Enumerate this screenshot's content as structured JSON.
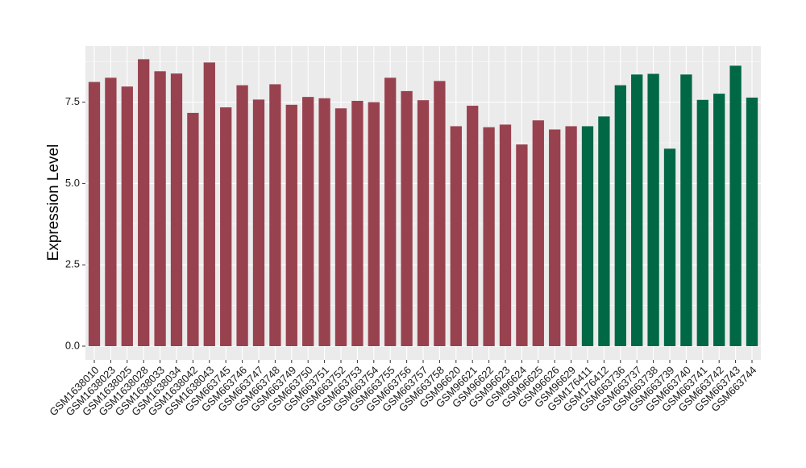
{
  "chart_data": {
    "type": "bar",
    "title": "",
    "xlabel": "",
    "ylabel": "Expression Level",
    "ylim": [
      0,
      8.9
    ],
    "yticks": [
      0.0,
      2.5,
      5.0,
      7.5
    ],
    "ytick_labels": [
      "0.0",
      "2.5",
      "5.0",
      "7.5"
    ],
    "grid": true,
    "legend": "none",
    "colors": {
      "group_a": "#99424f",
      "group_b": "#006845",
      "panel": "#ebebeb",
      "grid": "#ffffff"
    },
    "categories": [
      "GSM1638010",
      "GSM1638023",
      "GSM1638025",
      "GSM1638028",
      "GSM1638033",
      "GSM1638034",
      "GSM1638042",
      "GSM1638043",
      "GSM663745",
      "GSM663746",
      "GSM663747",
      "GSM663748",
      "GSM663749",
      "GSM663750",
      "GSM663751",
      "GSM663752",
      "GSM663753",
      "GSM663754",
      "GSM663755",
      "GSM663756",
      "GSM663757",
      "GSM663758",
      "GSM96620",
      "GSM96621",
      "GSM96622",
      "GSM96623",
      "GSM96624",
      "GSM96625",
      "GSM96626",
      "GSM96629",
      "GSM176411",
      "GSM176412",
      "GSM663736",
      "GSM663737",
      "GSM663738",
      "GSM663739",
      "GSM663740",
      "GSM663741",
      "GSM663742",
      "GSM663743",
      "GSM663744"
    ],
    "values": [
      8.12,
      8.25,
      7.98,
      8.82,
      8.45,
      8.38,
      7.17,
      8.72,
      7.34,
      8.02,
      7.58,
      8.05,
      7.42,
      7.66,
      7.62,
      7.31,
      7.54,
      7.5,
      8.25,
      7.84,
      7.56,
      8.15,
      6.76,
      7.39,
      6.73,
      6.81,
      6.2,
      6.94,
      6.66,
      6.76,
      6.76,
      7.06,
      8.02,
      8.35,
      8.37,
      6.07,
      8.35,
      7.57,
      7.76,
      8.62,
      7.64
    ],
    "groups": [
      "a",
      "a",
      "a",
      "a",
      "a",
      "a",
      "a",
      "a",
      "a",
      "a",
      "a",
      "a",
      "a",
      "a",
      "a",
      "a",
      "a",
      "a",
      "a",
      "a",
      "a",
      "a",
      "a",
      "a",
      "a",
      "a",
      "a",
      "a",
      "a",
      "a",
      "b",
      "b",
      "b",
      "b",
      "b",
      "b",
      "b",
      "b",
      "b",
      "b",
      "b"
    ]
  }
}
